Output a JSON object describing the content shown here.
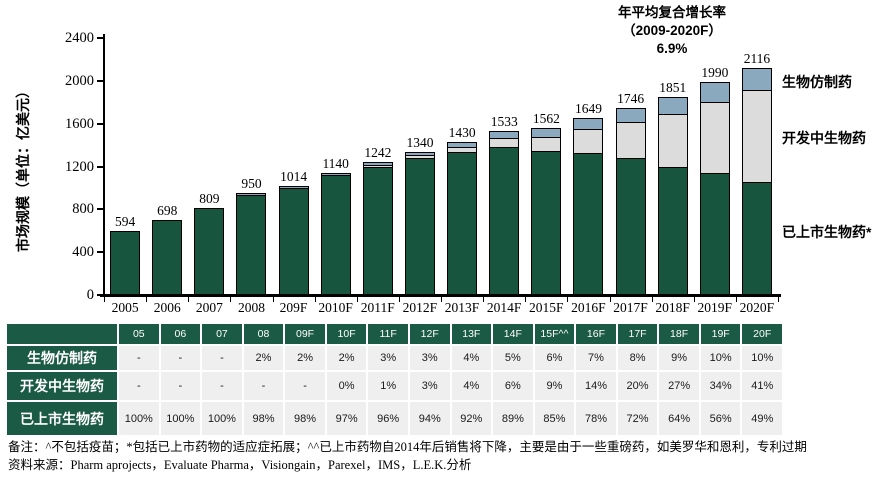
{
  "chart": {
    "cagr_annotation": {
      "line1": "年平均复合增长率",
      "line2": "（2009-2020F）",
      "line3": "6.9%"
    },
    "ylabel": "市场规模（单位：亿美元）",
    "legend": {
      "biosimilar": "生物仿制药",
      "in_development": "开发中生物药",
      "marketed": "已上市生物药*"
    }
  },
  "chart_data": {
    "type": "bar",
    "stacked": true,
    "title": "年平均复合增长率（2009-2020F） 6.9%",
    "xlabel": "",
    "ylabel": "市场规模（单位：亿美元）",
    "ylim": [
      0,
      2400
    ],
    "yticks": [
      0,
      400,
      800,
      1200,
      1600,
      2000,
      2400
    ],
    "grid": false,
    "legend_position": "right",
    "categories": [
      "2005",
      "2006",
      "2007",
      "2008",
      "209F",
      "2010F",
      "2011F",
      "2012F",
      "2013F",
      "2014F",
      "2015F",
      "2016F",
      "2017F",
      "2018F",
      "2019F",
      "2020F"
    ],
    "totals": [
      594,
      698,
      809,
      950,
      1014,
      1140,
      1242,
      1340,
      1430,
      1533,
      1562,
      1649,
      1746,
      1851,
      1990,
      2116
    ],
    "series": [
      {
        "name": "已上市生物药*",
        "color": "#17553F",
        "percent": [
          100,
          100,
          100,
          98,
          98,
          97,
          96,
          94,
          92,
          89,
          85,
          78,
          72,
          64,
          56,
          49
        ]
      },
      {
        "name": "开发中生物药",
        "color": "#DCDCDC",
        "percent": [
          0,
          0,
          0,
          0,
          0,
          0,
          1,
          3,
          4,
          6,
          9,
          14,
          20,
          27,
          34,
          41
        ]
      },
      {
        "name": "生物仿制药",
        "color": "#8AA9BE",
        "percent": [
          0,
          0,
          0,
          2,
          2,
          2,
          3,
          3,
          4,
          5,
          6,
          7,
          8,
          9,
          10,
          10
        ]
      }
    ]
  },
  "table": {
    "header": [
      "",
      "05",
      "06",
      "07",
      "08",
      "09F",
      "10F",
      "11F",
      "12F",
      "13F",
      "14F",
      "15F^^",
      "16F",
      "17F",
      "18F",
      "19F",
      "20F"
    ],
    "rows": [
      {
        "label": "生物仿制药",
        "values": [
          "-",
          "-",
          "-",
          "2%",
          "2%",
          "2%",
          "3%",
          "3%",
          "4%",
          "5%",
          "6%",
          "7%",
          "8%",
          "9%",
          "10%",
          "10%"
        ]
      },
      {
        "label": "开发中生物药",
        "values": [
          "-",
          "-",
          "-",
          "-",
          "-",
          "0%",
          "1%",
          "3%",
          "4%",
          "6%",
          "9%",
          "14%",
          "20%",
          "27%",
          "34%",
          "41%"
        ]
      },
      {
        "label": "已上市生物药",
        "values": [
          "100%",
          "100%",
          "100%",
          "98%",
          "98%",
          "97%",
          "96%",
          "94%",
          "92%",
          "89%",
          "85%",
          "78%",
          "72%",
          "64%",
          "56%",
          "49%"
        ]
      }
    ]
  },
  "footnotes": {
    "note": "备注：^不包括疫苗；*包括已上市药物的适应症拓展；^^已上市药物自2014年后销售将下降，主要是由于一些重磅药，如美罗华和恩利，专利过期",
    "source": "资料来源：Pharm aprojects，Evaluate Pharma，Visiongain，Parexel，IMS，L.E.K.分析"
  },
  "colors": {
    "bar_marketed": "#17553F",
    "bar_in_development": "#DCDCDC",
    "bar_biosimilar": "#8AA9BE",
    "table_header_bg": "#1B5A45",
    "table_cell_bg": "#EFEFEF"
  }
}
